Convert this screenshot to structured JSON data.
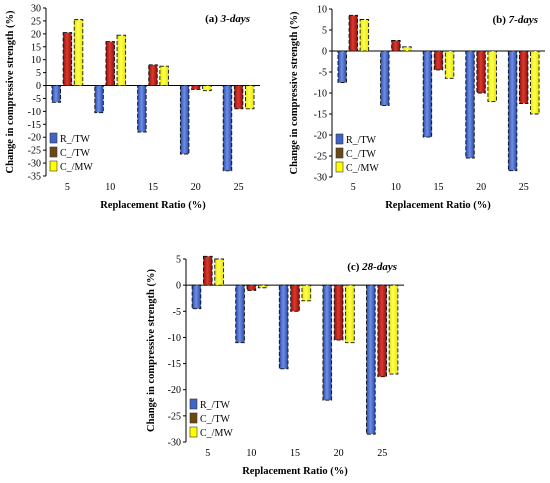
{
  "chart_data": [
    {
      "type": "bar",
      "title": "(a) 3-days",
      "title_prefix": "(a)",
      "title_italic": "3-days",
      "xlabel": "Replacement Ratio (%)",
      "ylabel": "Change in compressive strength (%)",
      "categories": [
        "5",
        "10",
        "15",
        "20",
        "25"
      ],
      "ylim": [
        -35,
        30
      ],
      "yticks": [
        30,
        25,
        20,
        15,
        10,
        5,
        0,
        -5,
        -10,
        -15,
        -20,
        -25,
        -30,
        -35
      ],
      "legend_position": "bottom-left",
      "grid": false,
      "series": [
        {
          "name": "R_/TW",
          "values": [
            -6.5,
            -10.5,
            -18,
            -26.5,
            -33
          ]
        },
        {
          "name": "C_/TW",
          "values": [
            20.5,
            17,
            8,
            -1.5,
            -9
          ]
        },
        {
          "name": "C_/MW",
          "values": [
            25.5,
            19.5,
            7.5,
            -2,
            -9
          ]
        }
      ]
    },
    {
      "type": "bar",
      "title": "(b) 7-days",
      "title_prefix": "(b)",
      "title_italic": "7-days",
      "xlabel": "Replacement Ratio (%)",
      "ylabel": "Change in compressive strength (%)",
      "categories": [
        "5",
        "10",
        "15",
        "20",
        "25"
      ],
      "ylim": [
        -30,
        10
      ],
      "yticks": [
        10,
        5,
        0,
        -5,
        -10,
        -15,
        -20,
        -25,
        -30
      ],
      "legend_position": "bottom-left",
      "grid": false,
      "series": [
        {
          "name": "R_/TW",
          "values": [
            -7.5,
            -13,
            -20.5,
            -25.5,
            -28.5
          ]
        },
        {
          "name": "C_/TW",
          "values": [
            8.5,
            2.5,
            -4.5,
            -10,
            -12.5
          ]
        },
        {
          "name": "C_/MW",
          "values": [
            7.5,
            1,
            -6.5,
            -12,
            -15
          ]
        }
      ]
    },
    {
      "type": "bar",
      "title": "(c) 28-days",
      "title_prefix": "(c)",
      "title_italic": "28-days",
      "xlabel": "Replacement Ratio (%)",
      "ylabel": "Change in compressive strength (%)",
      "categories": [
        "5",
        "10",
        "15",
        "20",
        "25"
      ],
      "ylim": [
        -30,
        5
      ],
      "yticks": [
        5,
        0,
        -5,
        -10,
        -15,
        -20,
        -25,
        -30
      ],
      "legend_position": "bottom-left",
      "grid": false,
      "series": [
        {
          "name": "R_/TW",
          "values": [
            -4.5,
            -11,
            -16,
            -22,
            -28.5
          ]
        },
        {
          "name": "C_/TW",
          "values": [
            5.5,
            -1,
            -5,
            -10.5,
            -17.5
          ]
        },
        {
          "name": "C_/MW",
          "values": [
            5,
            -0.5,
            -3,
            -11,
            -17
          ]
        }
      ]
    }
  ],
  "colors": {
    "R_/TW": "#4a6fd0",
    "C_/TW": "#b3261e",
    "C_/MW": "#ffff00",
    "R_/TW_legend": "#3f63c6",
    "C_/TW_legend": "#6b4a12",
    "C_/MW_legend": "#ffff00"
  }
}
